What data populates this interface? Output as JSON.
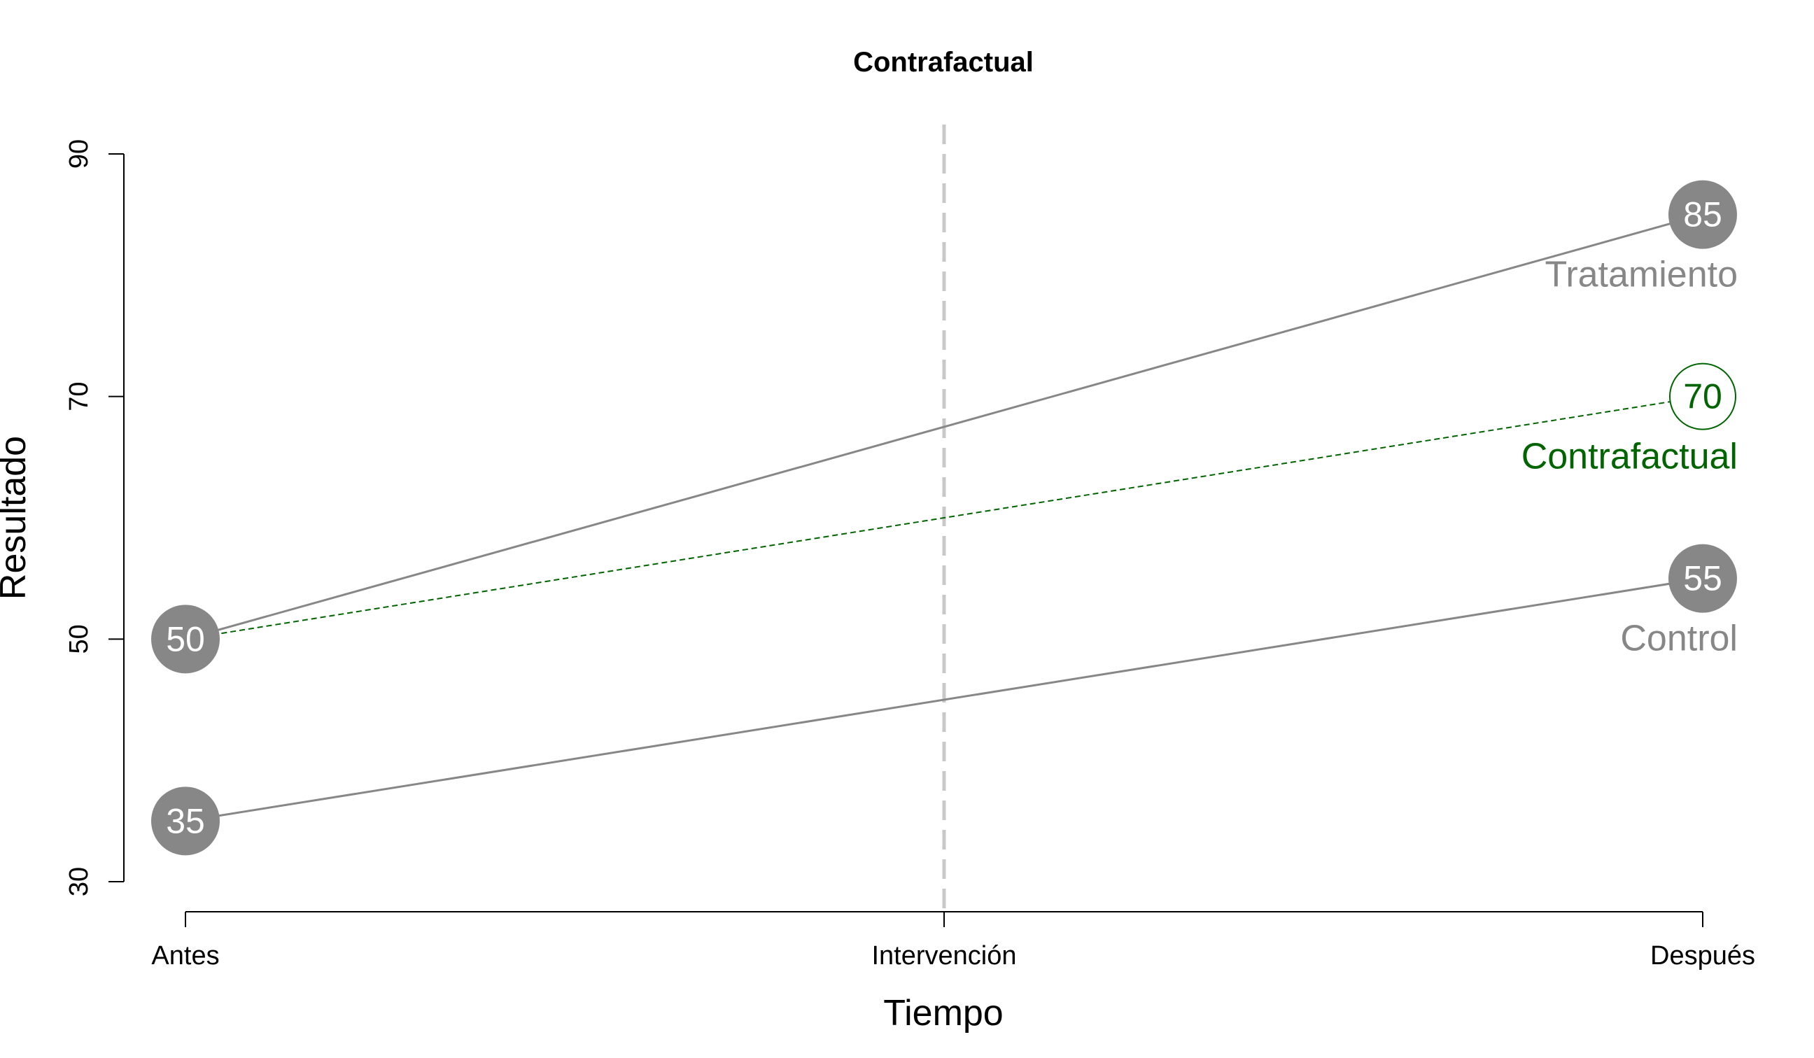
{
  "chart_data": {
    "type": "line",
    "title": "Contrafactual",
    "xlabel": "Tiempo",
    "ylabel": "Resultado",
    "categories": [
      "Antes",
      "Intervención",
      "Después"
    ],
    "x": [
      0,
      0.5,
      1
    ],
    "xlim": [
      0,
      1
    ],
    "ylim": [
      30,
      90
    ],
    "yticks": [
      30,
      50,
      70,
      90
    ],
    "intervention_line": {
      "x": 0.5,
      "style": "dashed",
      "color": "#c8c8c8"
    },
    "series": [
      {
        "name": "Tratamiento",
        "x": [
          0,
          1
        ],
        "values": [
          50,
          85
        ],
        "labels": [
          "50",
          "85"
        ],
        "style": "solid",
        "color": "#878787",
        "marker": "filled"
      },
      {
        "name": "Contrafactual",
        "x": [
          0,
          1
        ],
        "values": [
          50,
          70
        ],
        "labels": [
          "50",
          "70"
        ],
        "style": "dotted",
        "color": "#006400",
        "marker": "open"
      },
      {
        "name": "Control",
        "x": [
          0,
          1
        ],
        "values": [
          35,
          55
        ],
        "labels": [
          "35",
          "55"
        ],
        "style": "solid",
        "color": "#878787",
        "marker": "filled"
      }
    ]
  }
}
